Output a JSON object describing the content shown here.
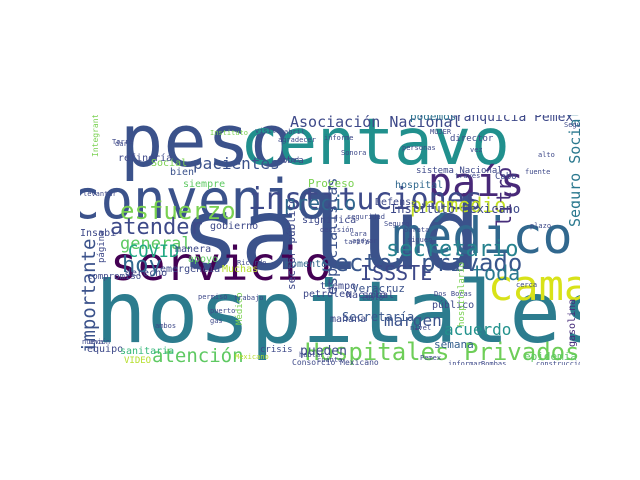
{
  "wordcloud": {
    "words": [
      {
        "text": "salud",
        "color": "#3b528b"
      },
      {
        "text": "peso",
        "color": "#3b528b"
      },
      {
        "text": "centavo",
        "color": "#21908d"
      },
      {
        "text": "hospitales",
        "color": "#2c7c8e"
      },
      {
        "text": "convenio",
        "color": "#3b528b"
      },
      {
        "text": "servicio",
        "color": "#440154"
      },
      {
        "text": "médico",
        "color": "#31688e"
      },
      {
        "text": "país",
        "color": "#482878"
      },
      {
        "text": "cama",
        "color": "#d8e219"
      },
      {
        "text": "instituciones",
        "color": "#3e4a89"
      },
      {
        "text": "sector privado",
        "color": "#39568c"
      },
      {
        "text": "Hospitales Privados",
        "color": "#6ece58"
      },
      {
        "text": "secretario",
        "color": "#26828e"
      },
      {
        "text": "esfuerzo",
        "color": "#7ad151"
      },
      {
        "text": "pacientes",
        "color": "#3b528b"
      },
      {
        "text": "precio",
        "color": "#31688e"
      },
      {
        "text": "promedio",
        "color": "#c2df23"
      },
      {
        "text": "atender",
        "color": "#3e4a89"
      },
      {
        "text": "general",
        "color": "#5ec962"
      },
      {
        "text": "hoy",
        "color": "#31688e"
      },
      {
        "text": "COVID",
        "color": "#22a884"
      },
      {
        "text": "toda",
        "color": "#2a788e"
      },
      {
        "text": "ISSSTE",
        "color": "#3e4989"
      },
      {
        "text": "atención",
        "color": "#5ec962"
      },
      {
        "text": "importante",
        "color": "#3b528b"
      },
      {
        "text": "litro",
        "color": "#472d7b"
      },
      {
        "text": "margen",
        "color": "#3b528b"
      },
      {
        "text": "acuerdo",
        "color": "#21918c"
      },
      {
        "text": "Asociación Nacional",
        "color": "#3e4989"
      },
      {
        "text": "Seguro Social",
        "color": "#2a788e"
      },
      {
        "text": "especialistas",
        "color": "#3b528b"
      },
      {
        "text": "pueden",
        "color": "#3e4989"
      },
      {
        "text": "semana",
        "color": "#355f8d"
      },
      {
        "text": "Secretaría",
        "color": "#39568c"
      },
      {
        "text": "franquicia Pemex",
        "color": "#3e4989"
      },
      {
        "text": "podemos",
        "color": "#2c728e"
      },
      {
        "text": "epidemia",
        "color": "#5ec962"
      },
      {
        "text": "gasolina",
        "color": "#472d7b"
      },
      {
        "text": "Veracruz",
        "color": "#3b528b"
      },
      {
        "text": "Instituto Mexicano",
        "color": "#3e4989"
      },
      {
        "text": "Defensa",
        "color": "#3e4989"
      },
      {
        "text": "hospital",
        "color": "#31688e"
      },
      {
        "text": "refinería",
        "color": "#3e4989"
      },
      {
        "text": "Social",
        "color": "#7ad151"
      },
      {
        "text": "bien",
        "color": "#3b528b"
      },
      {
        "text": "siempre",
        "color": "#5ec962"
      },
      {
        "text": "Proceso",
        "color": "#7ad151"
      },
      {
        "text": "gobierno",
        "color": "#3e4989"
      },
      {
        "text": "derecho",
        "color": "#3e4989"
      },
      {
        "text": "emergencia",
        "color": "#3e4989"
      },
      {
        "text": "Muchas",
        "color": "#b5de2b"
      },
      {
        "text": "manera",
        "color": "#3e4989"
      },
      {
        "text": "apoyo",
        "color": "#5ec962"
      },
      {
        "text": "momento",
        "color": "#31688e"
      },
      {
        "text": "petróleo",
        "color": "#3e4989"
      },
      {
        "text": "tiempo",
        "color": "#3e4989"
      },
      {
        "text": "mañana",
        "color": "#3e4989"
      },
      {
        "text": "Nacional",
        "color": "#3e4989"
      },
      {
        "text": "solo",
        "color": "#3e4989"
      },
      {
        "text": "equipo",
        "color": "#3e4989"
      },
      {
        "text": "sanitaria",
        "color": "#35b779"
      },
      {
        "text": "página",
        "color": "#3e4989"
      },
      {
        "text": "compromiso",
        "color": "#3e4989"
      },
      {
        "text": "sector público",
        "color": "#3e4989"
      },
      {
        "text": "Consorcio Mexicano",
        "color": "#3e4989"
      },
      {
        "text": "Insabi",
        "color": "#3e4989"
      },
      {
        "text": "significa",
        "color": "#3e4989"
      },
      {
        "text": "director",
        "color": "#3e4989"
      },
      {
        "text": "sistema Nacional",
        "color": "#3e4989"
      },
      {
        "text": "público",
        "color": "#3e4989"
      },
      {
        "text": "Integrantes",
        "color": "#7ad151"
      },
      {
        "text": "VIDEO",
        "color": "#b5de2b"
      },
      {
        "text": "crisis",
        "color": "#3e4989"
      },
      {
        "text": "Cabo",
        "color": "#3e4989"
      },
      {
        "text": "Ricardo",
        "color": "#3e4989"
      },
      {
        "text": "barata",
        "color": "#3e4989"
      },
      {
        "text": "Seguro",
        "color": "#3e4989"
      },
      {
        "text": "cara",
        "color": "#3e4989"
      },
      {
        "text": "tarifa",
        "color": "#3e4989"
      },
      {
        "text": "seguridad",
        "color": "#3e4989"
      },
      {
        "text": "Pemex",
        "color": "#3e4989"
      },
      {
        "text": "nivel",
        "color": "#3e4989"
      },
      {
        "text": "informe",
        "color": "#3e4989"
      },
      {
        "text": "construcción",
        "color": "#3e4989"
      },
      {
        "text": "nueva",
        "color": "#3e4989"
      },
      {
        "text": "obra",
        "color": "#3e4989"
      },
      {
        "text": "abril",
        "color": "#3e4989"
      },
      {
        "text": "Médico",
        "color": "#7ad151"
      },
      {
        "text": "gas",
        "color": "#3e4989"
      },
      {
        "text": "Torre",
        "color": "#3e4989"
      },
      {
        "text": "hospitalario",
        "color": "#7ad151"
      },
      {
        "text": "levantar",
        "color": "#3e4989"
      },
      {
        "text": "ambos",
        "color": "#3e4989"
      },
      {
        "text": "apoyar",
        "color": "#3e4989"
      },
      {
        "text": "siguen",
        "color": "#3e4989"
      },
      {
        "text": "vez",
        "color": "#3e4989"
      },
      {
        "text": "visita",
        "color": "#3e4989"
      },
      {
        "text": "agradecer",
        "color": "#3e4989"
      },
      {
        "text": "permiso",
        "color": "#3e4989"
      },
      {
        "text": "Instituto",
        "color": "#7ad151"
      },
      {
        "text": "Sonora",
        "color": "#3e4989"
      },
      {
        "text": "costo",
        "color": "#3e4989"
      },
      {
        "text": "Segundo",
        "color": "#3e4989"
      },
      {
        "text": "alto",
        "color": "#3e4989"
      },
      {
        "text": "Mexicano",
        "color": "#b5de2b"
      },
      {
        "text": "personas",
        "color": "#3e4989"
      },
      {
        "text": "dar",
        "color": "#3e4989"
      },
      {
        "text": "MUJER",
        "color": "#3e4989"
      },
      {
        "text": "trabajo",
        "color": "#3e4989"
      },
      {
        "text": "cuánto",
        "color": "#3e4989"
      },
      {
        "text": "informar",
        "color": "#3e4989"
      },
      {
        "text": "hablar",
        "color": "#3e4989"
      },
      {
        "text": "Bombas",
        "color": "#3e4989"
      },
      {
        "text": "unión",
        "color": "#3e4989"
      },
      {
        "text": "decisión",
        "color": "#3e4989"
      },
      {
        "text": "plazo",
        "color": "#3e4989"
      },
      {
        "text": "mitad",
        "color": "#3e4989"
      },
      {
        "text": "través",
        "color": "#3e4989"
      },
      {
        "text": "puerto",
        "color": "#3e4989"
      },
      {
        "text": "Dos Bocas",
        "color": "#3e4989"
      },
      {
        "text": "cerca",
        "color": "#3e4989"
      },
      {
        "text": "fuente",
        "color": "#3e4989"
      }
    ]
  }
}
